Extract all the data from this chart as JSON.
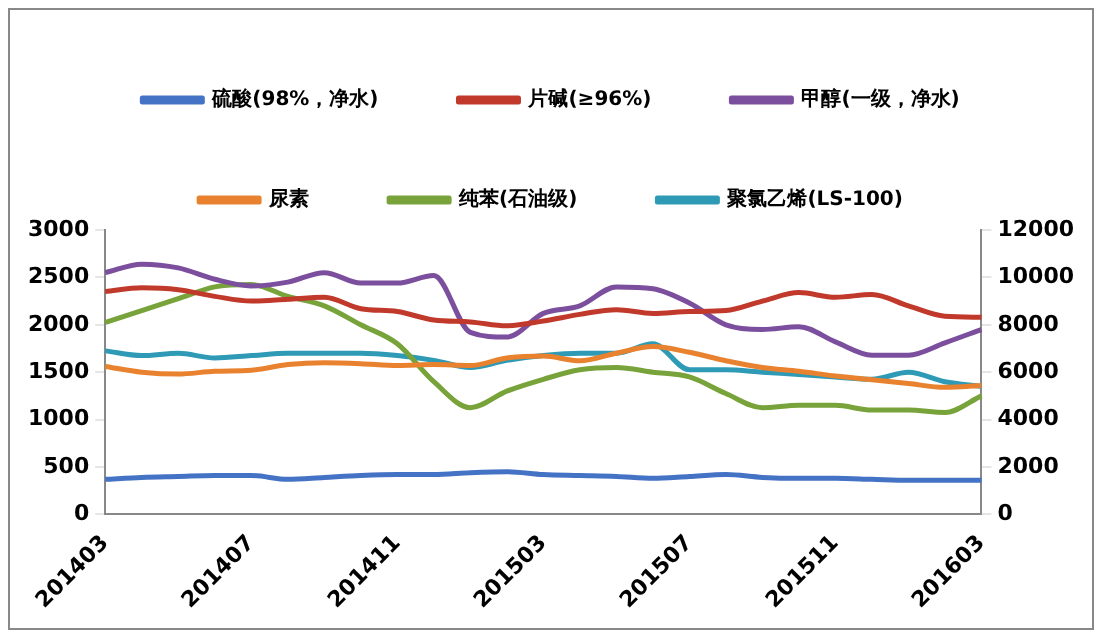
{
  "chart_data": {
    "type": "line",
    "categories": [
      "201403",
      null,
      null,
      null,
      "201407",
      null,
      null,
      null,
      "201411",
      null,
      null,
      null,
      "201503",
      null,
      null,
      null,
      "201507",
      null,
      null,
      null,
      "201511",
      null,
      null,
      null,
      "201603"
    ],
    "series": [
      {
        "name": "硫酸(98%，净水)",
        "color": "#4472c4",
        "values": [
          370,
          390,
          400,
          410,
          410,
          370,
          390,
          410,
          420,
          420,
          440,
          450,
          420,
          410,
          400,
          380,
          400,
          420,
          390,
          380,
          380,
          370,
          360,
          360,
          360
        ]
      },
      {
        "name": "片碱(≥96%)",
        "color": "#c0392b",
        "values": [
          2350,
          2390,
          2370,
          2300,
          2250,
          2270,
          2290,
          2170,
          2140,
          2050,
          2030,
          1990,
          2040,
          2110,
          2160,
          2120,
          2140,
          2150,
          2250,
          2340,
          2290,
          2320,
          2200,
          2090,
          2080
        ]
      },
      {
        "name": "甲醇(一级，净水)",
        "color": "#7b4f9d",
        "values": [
          2550,
          2640,
          2600,
          2480,
          2410,
          2450,
          2550,
          2440,
          2440,
          2520,
          1920,
          1870,
          2120,
          2200,
          2400,
          2380,
          2230,
          2000,
          1950,
          1980,
          1820,
          1680,
          1680,
          1810,
          1950
        ]
      },
      {
        "name": "尿素",
        "color": "#e9822e",
        "values": [
          1560,
          1500,
          1480,
          1510,
          1520,
          1580,
          1600,
          1590,
          1570,
          1580,
          1570,
          1650,
          1670,
          1620,
          1700,
          1770,
          1710,
          1620,
          1550,
          1510,
          1460,
          1420,
          1380,
          1340,
          1360
        ]
      },
      {
        "name": "纯苯(石油级)",
        "color": "#77a33a",
        "axis": "y2",
        "values": [
          8100,
          8600,
          9100,
          9600,
          9700,
          9200,
          8800,
          8000,
          7200,
          5600,
          4500,
          5200,
          5700,
          6100,
          6200,
          6000,
          5800,
          5100,
          4500,
          4600,
          4600,
          4400,
          4400,
          4300,
          5000
        ]
      },
      {
        "name": "聚氯乙烯(LS-100)",
        "color": "#2e9ab5",
        "axis": "y2",
        "values": [
          6900,
          6700,
          6800,
          6600,
          6700,
          6800,
          6800,
          6800,
          6700,
          6500,
          6200,
          6500,
          6700,
          6800,
          6800,
          7200,
          6100,
          6100,
          6000,
          5900,
          5800,
          5700,
          6000,
          5600,
          5400
        ]
      }
    ],
    "ylim": [
      0,
      3000
    ],
    "yticks": [
      0,
      500,
      1000,
      1500,
      2000,
      2500,
      3000
    ],
    "y2lim": [
      0,
      12000
    ],
    "y2ticks": [
      0,
      2000,
      4000,
      6000,
      8000,
      10000,
      12000
    ],
    "grid": false,
    "legend": "top",
    "marker": "none",
    "line_style": "solid"
  }
}
